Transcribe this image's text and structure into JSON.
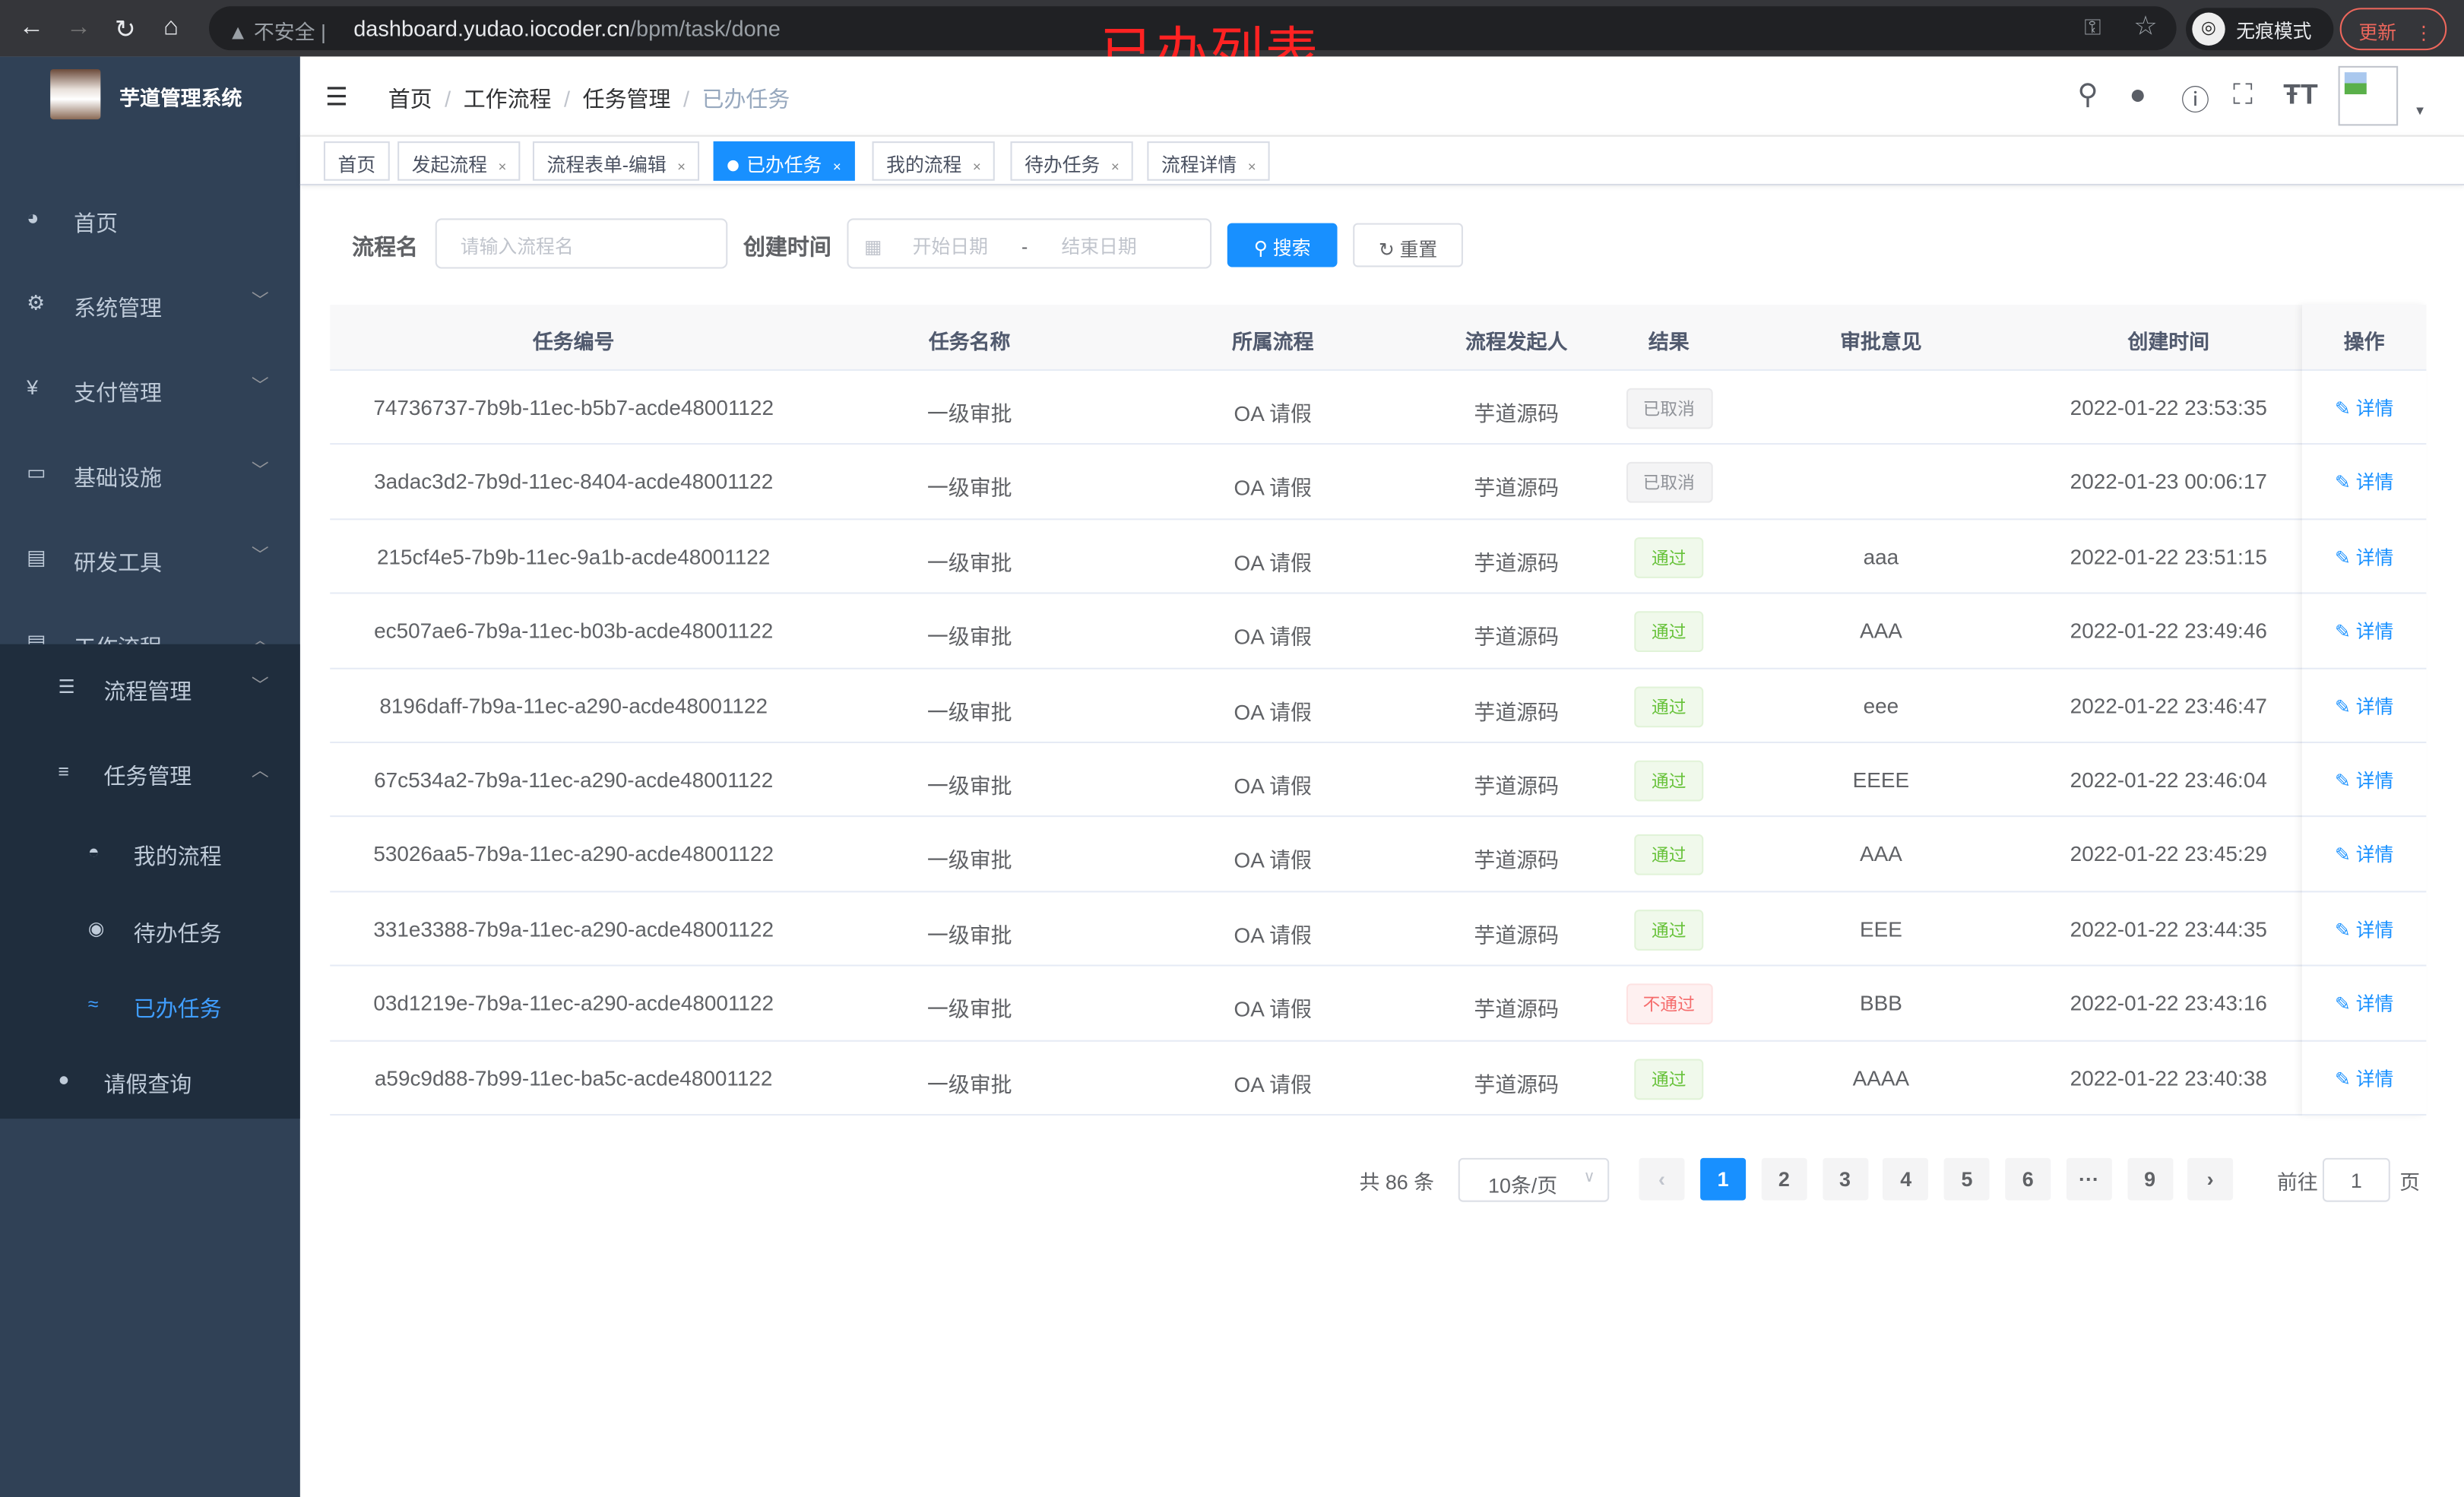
{
  "browser": {
    "security": "不安全",
    "url_host": "dashboard.yudao.iocoder.cn",
    "url_path": "/bpm/task/done",
    "incognito": "无痕模式",
    "update": "更新"
  },
  "overlay_title": "已办列表",
  "sidebar": {
    "title": "芋道管理系统",
    "items": [
      {
        "label": "首页",
        "icon": "dashboard-icon"
      },
      {
        "label": "系统管理",
        "icon": "gear-icon"
      },
      {
        "label": "支付管理",
        "icon": "yen-icon"
      },
      {
        "label": "基础设施",
        "icon": "monitor-icon"
      },
      {
        "label": "研发工具",
        "icon": "toolbox-icon"
      },
      {
        "label": "工作流程",
        "icon": "toolbox-icon"
      }
    ],
    "sub": [
      {
        "label": "流程管理",
        "icon": "list-icon"
      },
      {
        "label": "任务管理",
        "icon": "task-icon"
      },
      {
        "label": "我的流程",
        "icon": "user-icon"
      },
      {
        "label": "待办任务",
        "icon": "eye-icon"
      },
      {
        "label": "已办任务",
        "icon": "check-icon"
      },
      {
        "label": "请假查询",
        "icon": "person-icon"
      }
    ]
  },
  "breadcrumb": [
    "首页",
    "工作流程",
    "任务管理",
    "已办任务"
  ],
  "tags": [
    {
      "label": "首页"
    },
    {
      "label": "发起流程"
    },
    {
      "label": "流程表单-编辑"
    },
    {
      "label": "已办任务",
      "active": true
    },
    {
      "label": "我的流程"
    },
    {
      "label": "待办任务"
    },
    {
      "label": "流程详情"
    }
  ],
  "filter": {
    "name_label": "流程名",
    "name_placeholder": "请输入流程名",
    "time_label": "创建时间",
    "start_placeholder": "开始日期",
    "range_sep": "-",
    "end_placeholder": "结束日期",
    "search": "搜索",
    "reset": "重置"
  },
  "table": {
    "headers": [
      "任务编号",
      "任务名称",
      "所属流程",
      "流程发起人",
      "结果",
      "审批意见",
      "创建时间",
      "操作"
    ],
    "rows": [
      {
        "id": "74736737-7b9b-11ec-b5b7-acde48001122",
        "name": "一级审批",
        "process": "OA 请假",
        "starter": "芋道源码",
        "result": "已取消",
        "status": "info",
        "comment": "",
        "time": "2022-01-22 23:53:35",
        "op": "详情"
      },
      {
        "id": "3adac3d2-7b9d-11ec-8404-acde48001122",
        "name": "一级审批",
        "process": "OA 请假",
        "starter": "芋道源码",
        "result": "已取消",
        "status": "info",
        "comment": "",
        "time": "2022-01-23 00:06:17",
        "op": "详情"
      },
      {
        "id": "215cf4e5-7b9b-11ec-9a1b-acde48001122",
        "name": "一级审批",
        "process": "OA 请假",
        "starter": "芋道源码",
        "result": "通过",
        "status": "success",
        "comment": "aaa",
        "time": "2022-01-22 23:51:15",
        "op": "详情"
      },
      {
        "id": "ec507ae6-7b9a-11ec-b03b-acde48001122",
        "name": "一级审批",
        "process": "OA 请假",
        "starter": "芋道源码",
        "result": "通过",
        "status": "success",
        "comment": "AAA",
        "time": "2022-01-22 23:49:46",
        "op": "详情"
      },
      {
        "id": "8196daff-7b9a-11ec-a290-acde48001122",
        "name": "一级审批",
        "process": "OA 请假",
        "starter": "芋道源码",
        "result": "通过",
        "status": "success",
        "comment": "eee",
        "time": "2022-01-22 23:46:47",
        "op": "详情"
      },
      {
        "id": "67c534a2-7b9a-11ec-a290-acde48001122",
        "name": "一级审批",
        "process": "OA 请假",
        "starter": "芋道源码",
        "result": "通过",
        "status": "success",
        "comment": "EEEE",
        "time": "2022-01-22 23:46:04",
        "op": "详情"
      },
      {
        "id": "53026aa5-7b9a-11ec-a290-acde48001122",
        "name": "一级审批",
        "process": "OA 请假",
        "starter": "芋道源码",
        "result": "通过",
        "status": "success",
        "comment": "AAA",
        "time": "2022-01-22 23:45:29",
        "op": "详情"
      },
      {
        "id": "331e3388-7b9a-11ec-a290-acde48001122",
        "name": "一级审批",
        "process": "OA 请假",
        "starter": "芋道源码",
        "result": "通过",
        "status": "success",
        "comment": "EEE",
        "time": "2022-01-22 23:44:35",
        "op": "详情"
      },
      {
        "id": "03d1219e-7b9a-11ec-a290-acde48001122",
        "name": "一级审批",
        "process": "OA 请假",
        "starter": "芋道源码",
        "result": "不通过",
        "status": "danger",
        "comment": "BBB",
        "time": "2022-01-22 23:43:16",
        "op": "详情"
      },
      {
        "id": "a59c9d88-7b99-11ec-ba5c-acde48001122",
        "name": "一级审批",
        "process": "OA 请假",
        "starter": "芋道源码",
        "result": "通过",
        "status": "success",
        "comment": "AAAA",
        "time": "2022-01-22 23:40:38",
        "op": "详情"
      }
    ]
  },
  "pagination": {
    "total": "共 86 条",
    "page_size": "10条/页",
    "pages": [
      "1",
      "2",
      "3",
      "4",
      "5",
      "6",
      "···",
      "9"
    ],
    "current": "1",
    "goto_label": "前往",
    "goto_value": "1",
    "page_suffix": "页"
  },
  "colors": {
    "primary": "#1890ff",
    "sidebar": "#304156",
    "submenu": "#1f2d3d"
  }
}
